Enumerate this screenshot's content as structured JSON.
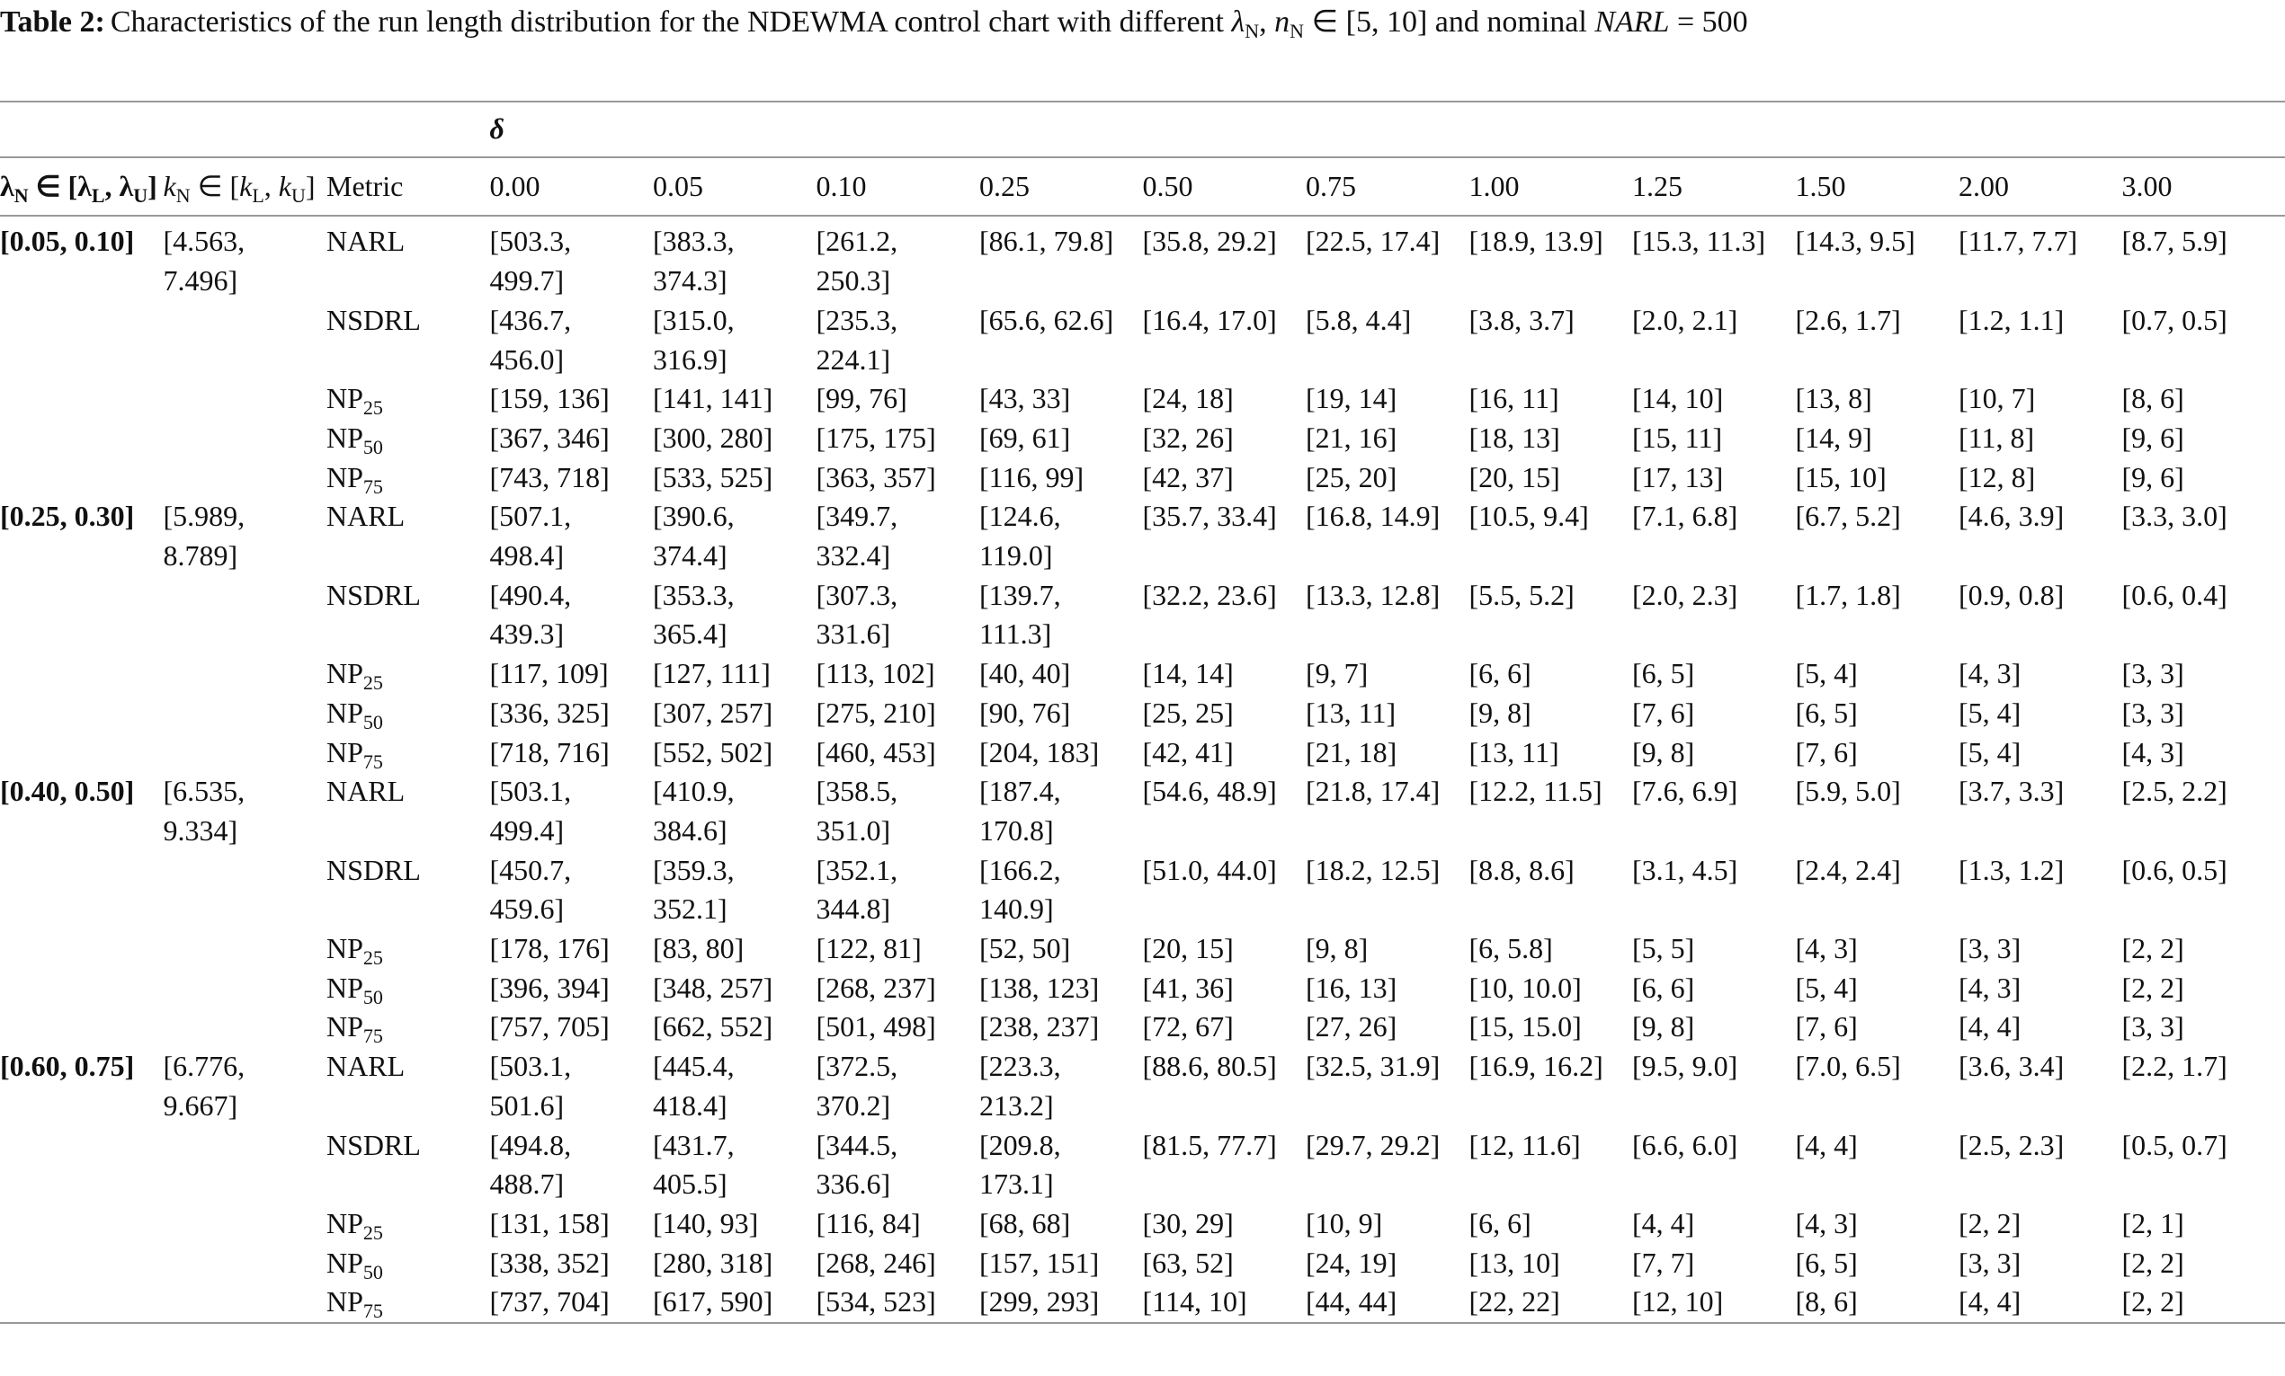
{
  "caption": {
    "label": "Table 2:",
    "parts": [
      {
        "text": "Characteristics of the run length distribution for the NDEWMA control chart with different "
      },
      {
        "text": "λ",
        "i": true
      },
      {
        "sub": "N"
      },
      {
        "text": ", "
      },
      {
        "text": "n",
        "i": true
      },
      {
        "sub": "N"
      },
      {
        "text": " ∈ [5, 10] and nominal "
      },
      {
        "text": "NARL",
        "i": true
      },
      {
        "text": " = 500"
      }
    ]
  },
  "header": {
    "delta": "δ",
    "lambda": [
      {
        "text": "λ"
      },
      {
        "sub": "N"
      },
      {
        "text": " ∈ [λ"
      },
      {
        "sub": "L"
      },
      {
        "text": ", λ"
      },
      {
        "sub": "U"
      },
      {
        "text": "]"
      }
    ],
    "k": [
      {
        "text": "k",
        "i": true
      },
      {
        "sub": "N"
      },
      {
        "text": " ∈ ["
      },
      {
        "text": "k",
        "i": true
      },
      {
        "sub": "L"
      },
      {
        "text": ", "
      },
      {
        "text": "k",
        "i": true
      },
      {
        "sub": "U"
      },
      {
        "text": "]"
      }
    ],
    "metric": "Metric",
    "deltas": [
      "0.00",
      "0.05",
      "0.10",
      "0.25",
      "0.50",
      "0.75",
      "1.00",
      "1.25",
      "1.50",
      "2.00",
      "3.00"
    ]
  },
  "groups": [
    {
      "lambda": "[0.05, 0.10]",
      "k": "[4.563, 7.496]",
      "rows": [
        {
          "metric": [
            {
              "text": "NARL"
            }
          ],
          "values": [
            "[503.3, 499.7]",
            "[383.3, 374.3]",
            "[261.2, 250.3]",
            "[86.1, 79.8]",
            "[35.8, 29.2]",
            "[22.5, 17.4]",
            "[18.9, 13.9]",
            "[15.3, 11.3]",
            "[14.3, 9.5]",
            "[11.7, 7.7]",
            "[8.7, 5.9]"
          ]
        },
        {
          "metric": [
            {
              "text": "NSDRL"
            }
          ],
          "values": [
            "[436.7, 456.0]",
            "[315.0, 316.9]",
            "[235.3, 224.1]",
            "[65.6, 62.6]",
            "[16.4, 17.0]",
            "[5.8, 4.4]",
            "[3.8, 3.7]",
            "[2.0, 2.1]",
            "[2.6, 1.7]",
            "[1.2, 1.1]",
            "[0.7, 0.5]"
          ]
        },
        {
          "metric": [
            {
              "text": "NP"
            },
            {
              "sub": "25"
            }
          ],
          "values": [
            "[159, 136]",
            "[141, 141]",
            "[99, 76]",
            "[43, 33]",
            "[24, 18]",
            "[19, 14]",
            "[16, 11]",
            "[14, 10]",
            "[13, 8]",
            "[10, 7]",
            "[8, 6]"
          ]
        },
        {
          "metric": [
            {
              "text": "NP"
            },
            {
              "sub": "50"
            }
          ],
          "values": [
            "[367, 346]",
            "[300, 280]",
            "[175, 175]",
            "[69, 61]",
            "[32, 26]",
            "[21, 16]",
            "[18, 13]",
            "[15, 11]",
            "[14, 9]",
            "[11, 8]",
            "[9, 6]"
          ]
        },
        {
          "metric": [
            {
              "text": "NP"
            },
            {
              "sub": "75"
            }
          ],
          "values": [
            "[743, 718]",
            "[533, 525]",
            "[363, 357]",
            "[116, 99]",
            "[42, 37]",
            "[25, 20]",
            "[20, 15]",
            "[17, 13]",
            "[15, 10]",
            "[12, 8]",
            "[9, 6]"
          ]
        }
      ]
    },
    {
      "lambda": "[0.25, 0.30]",
      "k": "[5.989, 8.789]",
      "rows": [
        {
          "metric": [
            {
              "text": "NARL"
            }
          ],
          "values": [
            "[507.1, 498.4]",
            "[390.6, 374.4]",
            "[349.7, 332.4]",
            "[124.6, 119.0]",
            "[35.7, 33.4]",
            "[16.8, 14.9]",
            "[10.5, 9.4]",
            "[7.1, 6.8]",
            "[6.7, 5.2]",
            "[4.6, 3.9]",
            "[3.3, 3.0]"
          ]
        },
        {
          "metric": [
            {
              "text": "NSDRL"
            }
          ],
          "values": [
            "[490.4, 439.3]",
            "[353.3, 365.4]",
            "[307.3, 331.6]",
            "[139.7, 111.3]",
            "[32.2, 23.6]",
            "[13.3, 12.8]",
            "[5.5, 5.2]",
            "[2.0, 2.3]",
            "[1.7, 1.8]",
            "[0.9, 0.8]",
            "[0.6, 0.4]"
          ]
        },
        {
          "metric": [
            {
              "text": "NP"
            },
            {
              "sub": "25"
            }
          ],
          "values": [
            "[117, 109]",
            "[127, 111]",
            "[113, 102]",
            "[40, 40]",
            "[14, 14]",
            "[9, 7]",
            "[6, 6]",
            "[6, 5]",
            "[5, 4]",
            "[4, 3]",
            "[3, 3]"
          ]
        },
        {
          "metric": [
            {
              "text": "NP"
            },
            {
              "sub": "50"
            }
          ],
          "values": [
            "[336, 325]",
            "[307, 257]",
            "[275, 210]",
            "[90, 76]",
            "[25, 25]",
            "[13, 11]",
            "[9, 8]",
            "[7, 6]",
            "[6, 5]",
            "[5, 4]",
            "[3, 3]"
          ]
        },
        {
          "metric": [
            {
              "text": "NP"
            },
            {
              "sub": "75"
            }
          ],
          "values": [
            "[718, 716]",
            "[552, 502]",
            "[460, 453]",
            "[204, 183]",
            "[42, 41]",
            "[21, 18]",
            "[13, 11]",
            "[9, 8]",
            "[7, 6]",
            "[5, 4]",
            "[4, 3]"
          ]
        }
      ]
    },
    {
      "lambda": "[0.40, 0.50]",
      "k": "[6.535, 9.334]",
      "rows": [
        {
          "metric": [
            {
              "text": "NARL"
            }
          ],
          "values": [
            "[503.1, 499.4]",
            "[410.9, 384.6]",
            "[358.5, 351.0]",
            "[187.4, 170.8]",
            "[54.6, 48.9]",
            "[21.8, 17.4]",
            "[12.2, 11.5]",
            "[7.6, 6.9]",
            "[5.9, 5.0]",
            "[3.7, 3.3]",
            "[2.5, 2.2]"
          ]
        },
        {
          "metric": [
            {
              "text": "NSDRL"
            }
          ],
          "values": [
            "[450.7, 459.6]",
            "[359.3, 352.1]",
            "[352.1, 344.8]",
            "[166.2, 140.9]",
            "[51.0, 44.0]",
            "[18.2, 12.5]",
            "[8.8, 8.6]",
            "[3.1, 4.5]",
            "[2.4, 2.4]",
            "[1.3, 1.2]",
            "[0.6, 0.5]"
          ]
        },
        {
          "metric": [
            {
              "text": "NP"
            },
            {
              "sub": "25"
            }
          ],
          "values": [
            "[178, 176]",
            "[83, 80]",
            "[122, 81]",
            "[52, 50]",
            "[20, 15]",
            "[9, 8]",
            "[6, 5.8]",
            "[5, 5]",
            "[4, 3]",
            "[3, 3]",
            "[2, 2]"
          ]
        },
        {
          "metric": [
            {
              "text": "NP"
            },
            {
              "sub": "50"
            }
          ],
          "values": [
            "[396, 394]",
            "[348, 257]",
            "[268, 237]",
            "[138, 123]",
            "[41, 36]",
            "[16, 13]",
            "[10, 10.0]",
            "[6, 6]",
            "[5, 4]",
            "[4, 3]",
            "[2, 2]"
          ]
        },
        {
          "metric": [
            {
              "text": "NP"
            },
            {
              "sub": "75"
            }
          ],
          "values": [
            "[757, 705]",
            "[662, 552]",
            "[501, 498]",
            "[238, 237]",
            "[72, 67]",
            "[27, 26]",
            "[15, 15.0]",
            "[9, 8]",
            "[7, 6]",
            "[4, 4]",
            "[3, 3]"
          ]
        }
      ]
    },
    {
      "lambda": "[0.60, 0.75]",
      "k": "[6.776, 9.667]",
      "rows": [
        {
          "metric": [
            {
              "text": "NARL"
            }
          ],
          "values": [
            "[503.1, 501.6]",
            "[445.4, 418.4]",
            "[372.5, 370.2]",
            "[223.3, 213.2]",
            "[88.6, 80.5]",
            "[32.5, 31.9]",
            "[16.9, 16.2]",
            "[9.5, 9.0]",
            "[7.0, 6.5]",
            "[3.6, 3.4]",
            "[2.2, 1.7]"
          ]
        },
        {
          "metric": [
            {
              "text": "NSDRL"
            }
          ],
          "values": [
            "[494.8, 488.7]",
            "[431.7, 405.5]",
            "[344.5, 336.6]",
            "[209.8, 173.1]",
            "[81.5, 77.7]",
            "[29.7, 29.2]",
            "[12, 11.6]",
            "[6.6, 6.0]",
            "[4, 4]",
            "[2.5, 2.3]",
            "[0.5, 0.7]"
          ]
        },
        {
          "metric": [
            {
              "text": "NP"
            },
            {
              "sub": "25"
            }
          ],
          "values": [
            "[131, 158]",
            "[140, 93]",
            "[116, 84]",
            "[68, 68]",
            "[30, 29]",
            "[10, 9]",
            "[6, 6]",
            "[4, 4]",
            "[4, 3]",
            "[2, 2]",
            "[2, 1]"
          ]
        },
        {
          "metric": [
            {
              "text": "NP"
            },
            {
              "sub": "50"
            }
          ],
          "values": [
            "[338, 352]",
            "[280, 318]",
            "[268, 246]",
            "[157, 151]",
            "[63, 52]",
            "[24, 19]",
            "[13, 10]",
            "[7, 7]",
            "[6, 5]",
            "[3, 3]",
            "[2, 2]"
          ]
        },
        {
          "metric": [
            {
              "text": "NP"
            },
            {
              "sub": "75"
            }
          ],
          "values": [
            "[737, 704]",
            "[617, 590]",
            "[534, 523]",
            "[299, 293]",
            "[114, 10]",
            "[44, 44]",
            "[22, 22]",
            "[12, 10]",
            "[8, 6]",
            "[4, 4]",
            "[2, 2]"
          ]
        }
      ]
    }
  ]
}
